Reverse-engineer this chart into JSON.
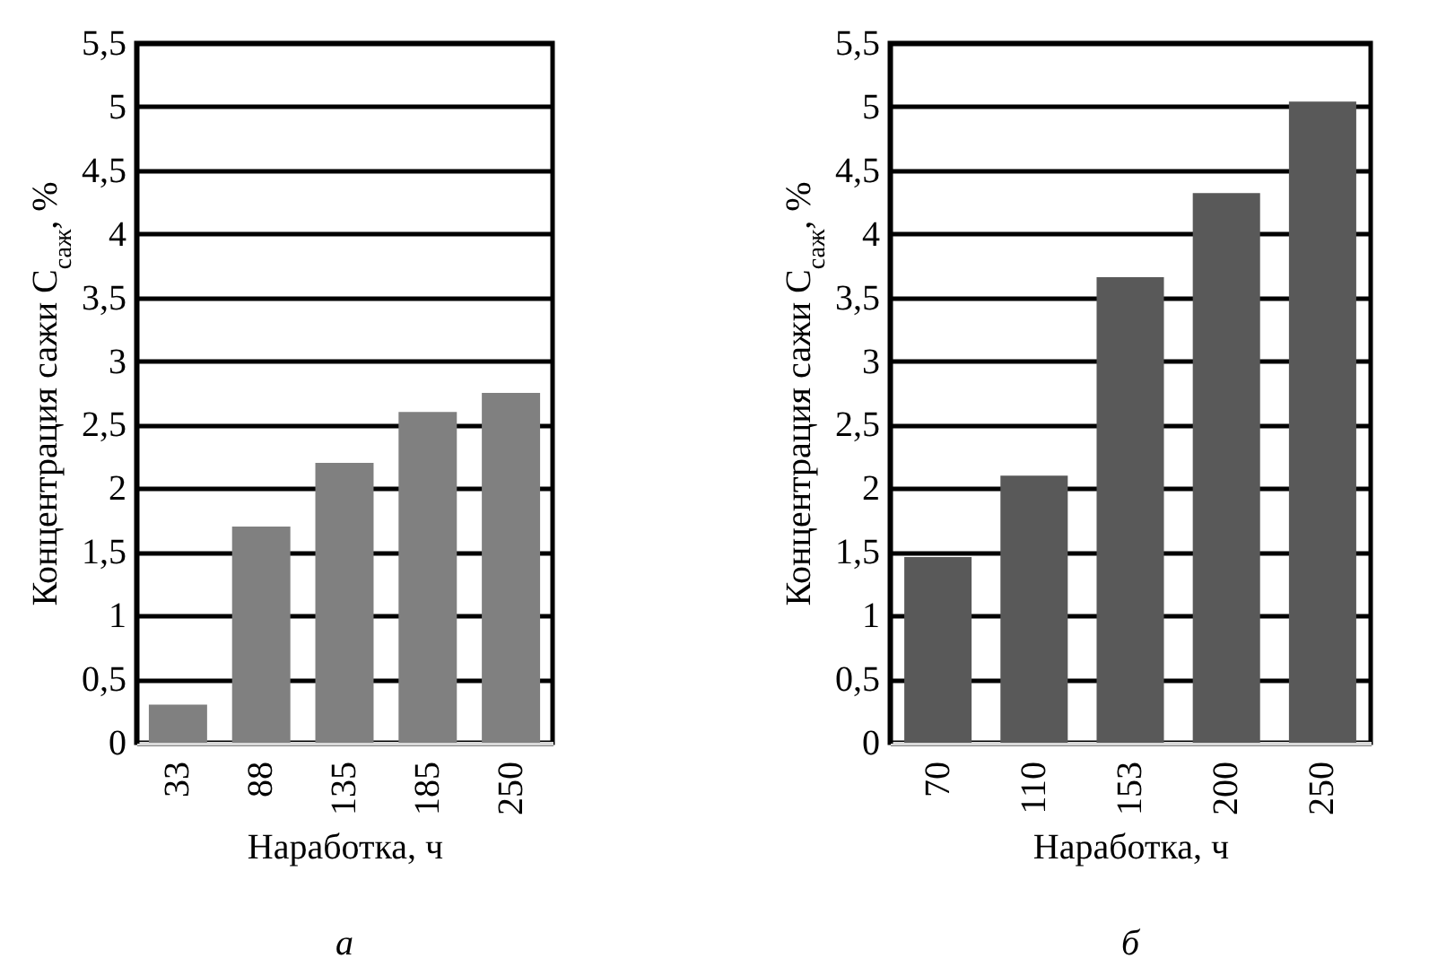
{
  "chart_data": [
    {
      "type": "bar",
      "categories": [
        "33",
        "88",
        "135",
        "185",
        "250"
      ],
      "values": [
        0.3,
        1.7,
        2.2,
        2.6,
        2.75
      ],
      "color": "#808080",
      "xlabel": "Наработка, ч",
      "ylabel": "Концентрация сажи C$_{саж}$, %",
      "ylim": [
        0,
        5.5
      ],
      "yticks": [
        0,
        {
          "value": 0.5,
          "label": "0,5"
        },
        1,
        {
          "value": 1.5,
          "label": "1,5"
        },
        2,
        {
          "value": 2.5,
          "label": "2,5"
        },
        3,
        {
          "value": 3.5,
          "label": "3,5"
        },
        4,
        {
          "value": 4.5,
          "label": "4,5"
        },
        5,
        {
          "value": 5.5,
          "label": "5,5"
        }
      ],
      "grid": "y",
      "annotations": [
        "а"
      ]
    },
    {
      "type": "bar",
      "categories": [
        "70",
        "110",
        "153",
        "200",
        "250"
      ],
      "values": [
        1.46,
        2.1,
        3.66,
        4.32,
        5.04
      ],
      "color": "#595959",
      "xlabel": "Наработка,  ч",
      "ylabel": "Концентрация сажи C$_{саж}$, %",
      "ylim": [
        0,
        5.5
      ],
      "yticks": [
        0,
        {
          "value": 0.5,
          "label": "0,5"
        },
        1,
        {
          "value": 1.5,
          "label": "1,5"
        },
        2,
        {
          "value": 2.5,
          "label": "2,5"
        },
        3,
        {
          "value": 3.5,
          "label": "3,5"
        },
        4,
        {
          "value": 4.5,
          "label": "4,5"
        },
        5,
        {
          "value": 5.5,
          "label": "5,5"
        }
      ],
      "grid": "y",
      "annotations": [
        "б"
      ]
    }
  ]
}
